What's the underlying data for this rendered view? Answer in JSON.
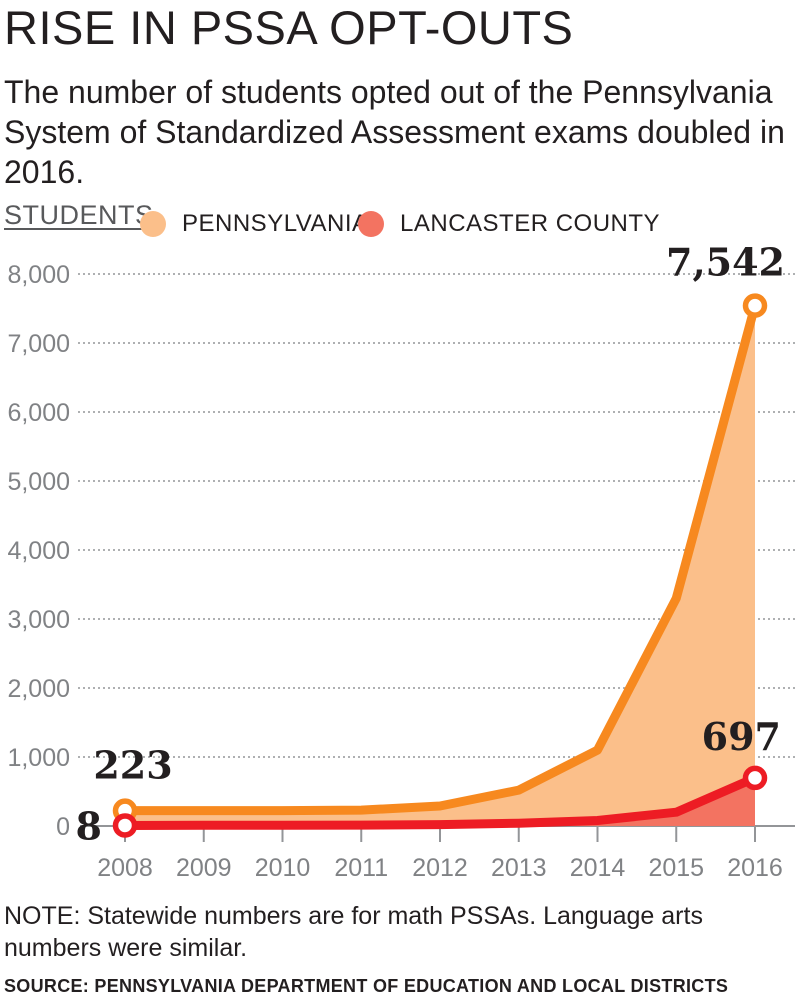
{
  "title": "RISE IN PSSA OPT-OUTS",
  "subtitle": "The number of students opted out of the Pennsylvania System of Standardized Assessment exams doubled in 2016.",
  "note": "NOTE: Statewide numbers are for math PSSAs. Language arts numbers were similar.",
  "source": "SOURCE: PENNSYLVANIA DEPARTMENT OF EDUCATION AND LOCAL DISTRICTS",
  "colors": {
    "pa_line": "#f7891f",
    "pa_fill": "#fbbf8a",
    "lc_line": "#ed1c24",
    "lc_fill": "#f37361",
    "legend_pa": "#fbbf8a",
    "legend_lc": "#f37361"
  },
  "chart_data": {
    "type": "area",
    "ylabel": "STUDENTS",
    "xlabel": "",
    "x": [
      "2008",
      "2009",
      "2010",
      "2011",
      "2012",
      "2013",
      "2014",
      "2015",
      "2016"
    ],
    "ylim": [
      0,
      8000
    ],
    "yticks": [
      0,
      1000,
      2000,
      3000,
      4000,
      5000,
      6000,
      7000,
      8000
    ],
    "ytick_labels": [
      "0",
      "1,000",
      "2,000",
      "3,000",
      "4,000",
      "5,000",
      "6,000",
      "7,000",
      "8,000"
    ],
    "grid": "horizontal-dotted",
    "legend_position": "top",
    "series": [
      {
        "name": "PENNSYLVANIA",
        "values": [
          223,
          223,
          223,
          230,
          290,
          520,
          1100,
          3300,
          7542
        ]
      },
      {
        "name": "LANCASTER COUNTY",
        "values": [
          8,
          10,
          10,
          12,
          20,
          40,
          80,
          200,
          697
        ]
      }
    ],
    "annotations": [
      {
        "text": "7,542",
        "series": "PENNSYLVANIA",
        "x": "2016"
      },
      {
        "text": "223",
        "series": "PENNSYLVANIA",
        "x": "2008"
      },
      {
        "text": "697",
        "series": "LANCASTER COUNTY",
        "x": "2016"
      },
      {
        "text": "8",
        "series": "LANCASTER COUNTY",
        "x": "2008"
      }
    ]
  }
}
